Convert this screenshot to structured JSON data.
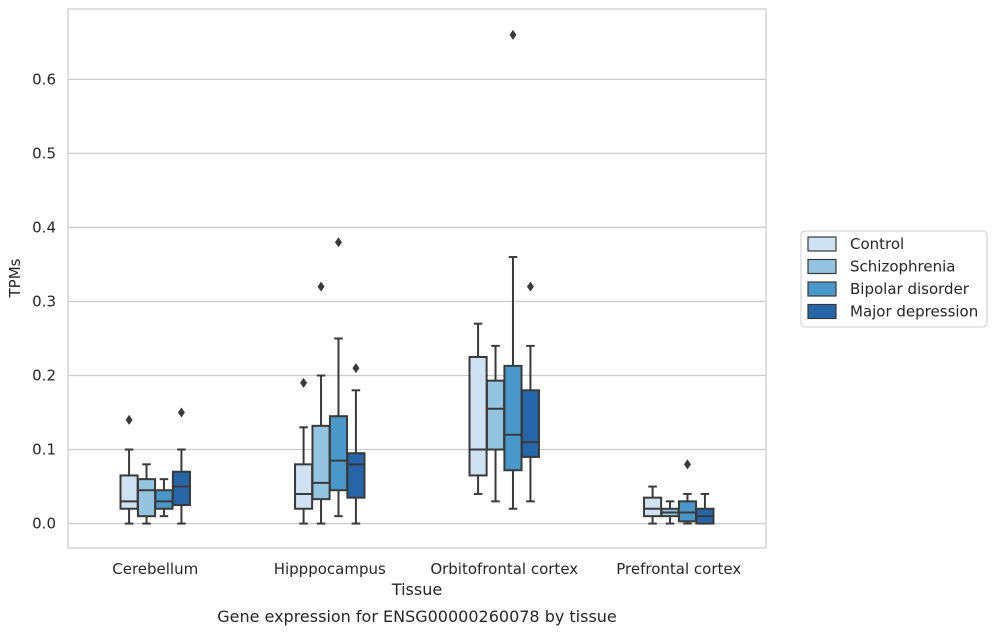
{
  "chart_data": {
    "type": "box",
    "title": "Gene expression for ENSG00000260078 by tissue",
    "xlabel": "Tissue",
    "ylabel": "TPMs",
    "ylim": [
      -0.033,
      0.695
    ],
    "yticks": [
      0.0,
      0.1,
      0.2,
      0.3,
      0.4,
      0.5,
      0.6
    ],
    "ytick_labels": [
      "0.0",
      "0.1",
      "0.2",
      "0.3",
      "0.4",
      "0.5",
      "0.6"
    ],
    "grid": "horizontal",
    "legend_position": "right",
    "categories": [
      "Cerebellum",
      "Hipppocampus",
      "Orbitofrontal cortex",
      "Prefrontal cortex"
    ],
    "series": [
      {
        "name": "Control",
        "color": "#d0e1f2",
        "boxes": [
          {
            "whislo": 0.0,
            "q1": 0.02,
            "med": 0.03,
            "q3": 0.065,
            "whishi": 0.1,
            "fliers": [
              0.14
            ]
          },
          {
            "whislo": 0.0,
            "q1": 0.02,
            "med": 0.04,
            "q3": 0.08,
            "whishi": 0.13,
            "fliers": [
              0.19
            ]
          },
          {
            "whislo": 0.04,
            "q1": 0.065,
            "med": 0.1,
            "q3": 0.225,
            "whishi": 0.27,
            "fliers": []
          },
          {
            "whislo": 0.0,
            "q1": 0.01,
            "med": 0.02,
            "q3": 0.035,
            "whishi": 0.05,
            "fliers": []
          }
        ]
      },
      {
        "name": "Schizophrenia",
        "color": "#94c4df",
        "boxes": [
          {
            "whislo": 0.0,
            "q1": 0.01,
            "med": 0.045,
            "q3": 0.06,
            "whishi": 0.08,
            "fliers": []
          },
          {
            "whislo": 0.0,
            "q1": 0.033,
            "med": 0.055,
            "q3": 0.132,
            "whishi": 0.2,
            "fliers": [
              0.32
            ]
          },
          {
            "whislo": 0.03,
            "q1": 0.1,
            "med": 0.155,
            "q3": 0.193,
            "whishi": 0.24,
            "fliers": []
          },
          {
            "whislo": 0.0,
            "q1": 0.01,
            "med": 0.015,
            "q3": 0.02,
            "whishi": 0.03,
            "fliers": []
          }
        ]
      },
      {
        "name": "Bipolar disorder",
        "color": "#4a98c9",
        "boxes": [
          {
            "whislo": 0.01,
            "q1": 0.02,
            "med": 0.03,
            "q3": 0.045,
            "whishi": 0.06,
            "fliers": []
          },
          {
            "whislo": 0.01,
            "q1": 0.045,
            "med": 0.085,
            "q3": 0.145,
            "whishi": 0.25,
            "fliers": [
              0.38
            ]
          },
          {
            "whislo": 0.02,
            "q1": 0.072,
            "med": 0.12,
            "q3": 0.213,
            "whishi": 0.36,
            "fliers": [
              0.66
            ]
          },
          {
            "whislo": 0.0,
            "q1": 0.003,
            "med": 0.015,
            "q3": 0.03,
            "whishi": 0.04,
            "fliers": [
              0.08
            ]
          }
        ]
      },
      {
        "name": "Major depression",
        "color": "#2565a8",
        "boxes": [
          {
            "whislo": 0.0,
            "q1": 0.025,
            "med": 0.05,
            "q3": 0.07,
            "whishi": 0.1,
            "fliers": [
              0.15
            ]
          },
          {
            "whislo": 0.0,
            "q1": 0.035,
            "med": 0.08,
            "q3": 0.095,
            "whishi": 0.18,
            "fliers": [
              0.21
            ]
          },
          {
            "whislo": 0.03,
            "q1": 0.09,
            "med": 0.11,
            "q3": 0.18,
            "whishi": 0.24,
            "fliers": [
              0.32
            ]
          },
          {
            "whislo": 0.0,
            "q1": 0.0,
            "med": 0.01,
            "q3": 0.02,
            "whishi": 0.04,
            "fliers": []
          }
        ]
      }
    ]
  }
}
